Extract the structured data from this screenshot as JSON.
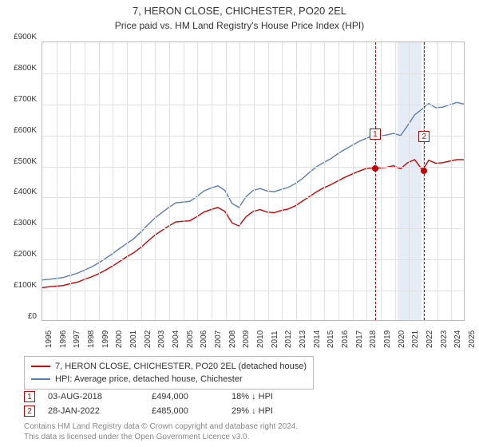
{
  "title": {
    "main": "7, HERON CLOSE, CHICHESTER, PO20 2EL",
    "sub": "Price paid vs. HM Land Registry's House Price Index (HPI)"
  },
  "chart": {
    "type": "line",
    "background_color": "#ffffff",
    "grid_color": "#e0e0e0",
    "border_color": "#bbbbbb",
    "y_axis": {
      "min": 0,
      "max": 900000,
      "step": 100000,
      "labels": [
        "£0",
        "£100K",
        "£200K",
        "£300K",
        "£400K",
        "£500K",
        "£600K",
        "£700K",
        "£800K",
        "£900K"
      ],
      "fontsize": 10
    },
    "x_axis": {
      "min": 1995,
      "max": 2025,
      "step": 1,
      "labels": [
        "1995",
        "1996",
        "1997",
        "1998",
        "1999",
        "2000",
        "2001",
        "2002",
        "2003",
        "2004",
        "2005",
        "2006",
        "2007",
        "2008",
        "2009",
        "2010",
        "2011",
        "2012",
        "2013",
        "2014",
        "2015",
        "2016",
        "2017",
        "2018",
        "2019",
        "2020",
        "2021",
        "2022",
        "2023",
        "2024",
        "2025"
      ],
      "fontsize": 10,
      "label_rotation": -90
    },
    "highlight_band": {
      "x_start": 2020.2,
      "x_end": 2021.9,
      "color": "#e6ecf5"
    },
    "series": [
      {
        "name": "price_paid",
        "label": "7, HERON CLOSE, CHICHESTER, PO20 2EL (detached house)",
        "color": "#cc0000",
        "line_width": 1.4,
        "data": [
          [
            1995,
            105000
          ],
          [
            1995.5,
            108000
          ],
          [
            1996,
            110000
          ],
          [
            1996.5,
            112000
          ],
          [
            1997,
            118000
          ],
          [
            1997.5,
            123000
          ],
          [
            1998,
            132000
          ],
          [
            1998.5,
            140000
          ],
          [
            1999,
            150000
          ],
          [
            1999.5,
            162000
          ],
          [
            2000,
            175000
          ],
          [
            2000.5,
            190000
          ],
          [
            2001,
            205000
          ],
          [
            2001.5,
            218000
          ],
          [
            2002,
            235000
          ],
          [
            2002.5,
            255000
          ],
          [
            2003,
            275000
          ],
          [
            2003.5,
            290000
          ],
          [
            2004,
            305000
          ],
          [
            2004.5,
            318000
          ],
          [
            2005,
            320000
          ],
          [
            2005.5,
            322000
          ],
          [
            2006,
            335000
          ],
          [
            2006.5,
            350000
          ],
          [
            2007,
            358000
          ],
          [
            2007.5,
            365000
          ],
          [
            2008,
            352000
          ],
          [
            2008.5,
            315000
          ],
          [
            2009,
            305000
          ],
          [
            2009.5,
            335000
          ],
          [
            2010,
            352000
          ],
          [
            2010.5,
            358000
          ],
          [
            2011,
            350000
          ],
          [
            2011.5,
            348000
          ],
          [
            2012,
            355000
          ],
          [
            2012.5,
            360000
          ],
          [
            2013,
            370000
          ],
          [
            2013.5,
            385000
          ],
          [
            2014,
            400000
          ],
          [
            2014.5,
            415000
          ],
          [
            2015,
            428000
          ],
          [
            2015.5,
            438000
          ],
          [
            2016,
            450000
          ],
          [
            2016.5,
            462000
          ],
          [
            2017,
            472000
          ],
          [
            2017.5,
            482000
          ],
          [
            2018,
            490000
          ],
          [
            2018.6,
            494000
          ],
          [
            2019,
            493000
          ],
          [
            2019.5,
            495000
          ],
          [
            2020,
            500000
          ],
          [
            2020.5,
            490000
          ],
          [
            2021,
            510000
          ],
          [
            2021.5,
            520000
          ],
          [
            2022.07,
            485000
          ],
          [
            2022.5,
            518000
          ],
          [
            2023,
            508000
          ],
          [
            2023.5,
            510000
          ],
          [
            2024,
            515000
          ],
          [
            2024.5,
            520000
          ],
          [
            2025,
            520000
          ]
        ]
      },
      {
        "name": "hpi",
        "label": "HPI: Average price, detached house, Chichester",
        "color": "#5b7cb8",
        "line_width": 1.4,
        "data": [
          [
            1995,
            130000
          ],
          [
            1995.5,
            132000
          ],
          [
            1996,
            135000
          ],
          [
            1996.5,
            138000
          ],
          [
            1997,
            145000
          ],
          [
            1997.5,
            152000
          ],
          [
            1998,
            162000
          ],
          [
            1998.5,
            172000
          ],
          [
            1999,
            185000
          ],
          [
            1999.5,
            200000
          ],
          [
            2000,
            215000
          ],
          [
            2000.5,
            232000
          ],
          [
            2001,
            248000
          ],
          [
            2001.5,
            263000
          ],
          [
            2002,
            285000
          ],
          [
            2002.5,
            308000
          ],
          [
            2003,
            330000
          ],
          [
            2003.5,
            348000
          ],
          [
            2004,
            365000
          ],
          [
            2004.5,
            380000
          ],
          [
            2005,
            382000
          ],
          [
            2005.5,
            385000
          ],
          [
            2006,
            400000
          ],
          [
            2006.5,
            418000
          ],
          [
            2007,
            428000
          ],
          [
            2007.5,
            435000
          ],
          [
            2008,
            420000
          ],
          [
            2008.5,
            378000
          ],
          [
            2009,
            365000
          ],
          [
            2009.5,
            400000
          ],
          [
            2010,
            420000
          ],
          [
            2010.5,
            426000
          ],
          [
            2011,
            418000
          ],
          [
            2011.5,
            416000
          ],
          [
            2012,
            423000
          ],
          [
            2012.5,
            430000
          ],
          [
            2013,
            442000
          ],
          [
            2013.5,
            458000
          ],
          [
            2014,
            478000
          ],
          [
            2014.5,
            496000
          ],
          [
            2015,
            510000
          ],
          [
            2015.5,
            522000
          ],
          [
            2016,
            538000
          ],
          [
            2016.5,
            552000
          ],
          [
            2017,
            565000
          ],
          [
            2017.5,
            578000
          ],
          [
            2018,
            588000
          ],
          [
            2018.6,
            598000
          ],
          [
            2019,
            596000
          ],
          [
            2019.5,
            600000
          ],
          [
            2020,
            605000
          ],
          [
            2020.5,
            598000
          ],
          [
            2021,
            630000
          ],
          [
            2021.5,
            665000
          ],
          [
            2022.07,
            685000
          ],
          [
            2022.5,
            702000
          ],
          [
            2023,
            688000
          ],
          [
            2023.5,
            690000
          ],
          [
            2024,
            698000
          ],
          [
            2024.5,
            705000
          ],
          [
            2025,
            700000
          ]
        ]
      }
    ],
    "markers": [
      {
        "id": "1",
        "x": 2018.6,
        "y": 494000,
        "vline_color": "#cc0000",
        "dot_color": "#cc0000",
        "box_color": "#cc0000",
        "label_y_offset": -50
      },
      {
        "id": "2",
        "x": 2022.07,
        "y": 485000,
        "vline_color": "#cc0000",
        "dot_color": "#cc0000",
        "box_color": "#cc0000",
        "label_y_offset": -50
      }
    ]
  },
  "legend": {
    "items": [
      {
        "color": "#cc0000",
        "label": "7, HERON CLOSE, CHICHESTER, PO20 2EL (detached house)"
      },
      {
        "color": "#5b7cb8",
        "label": "HPI: Average price, detached house, Chichester"
      }
    ]
  },
  "transactions": [
    {
      "marker": "1",
      "date": "03-AUG-2018",
      "price": "£494,000",
      "diff": "18% ↓ HPI"
    },
    {
      "marker": "2",
      "date": "28-JAN-2022",
      "price": "£485,000",
      "diff": "29% ↓ HPI"
    }
  ],
  "footer": {
    "line1": "Contains HM Land Registry data © Crown copyright and database right 2024.",
    "line2": "This data is licensed under the Open Government Licence v3.0."
  }
}
